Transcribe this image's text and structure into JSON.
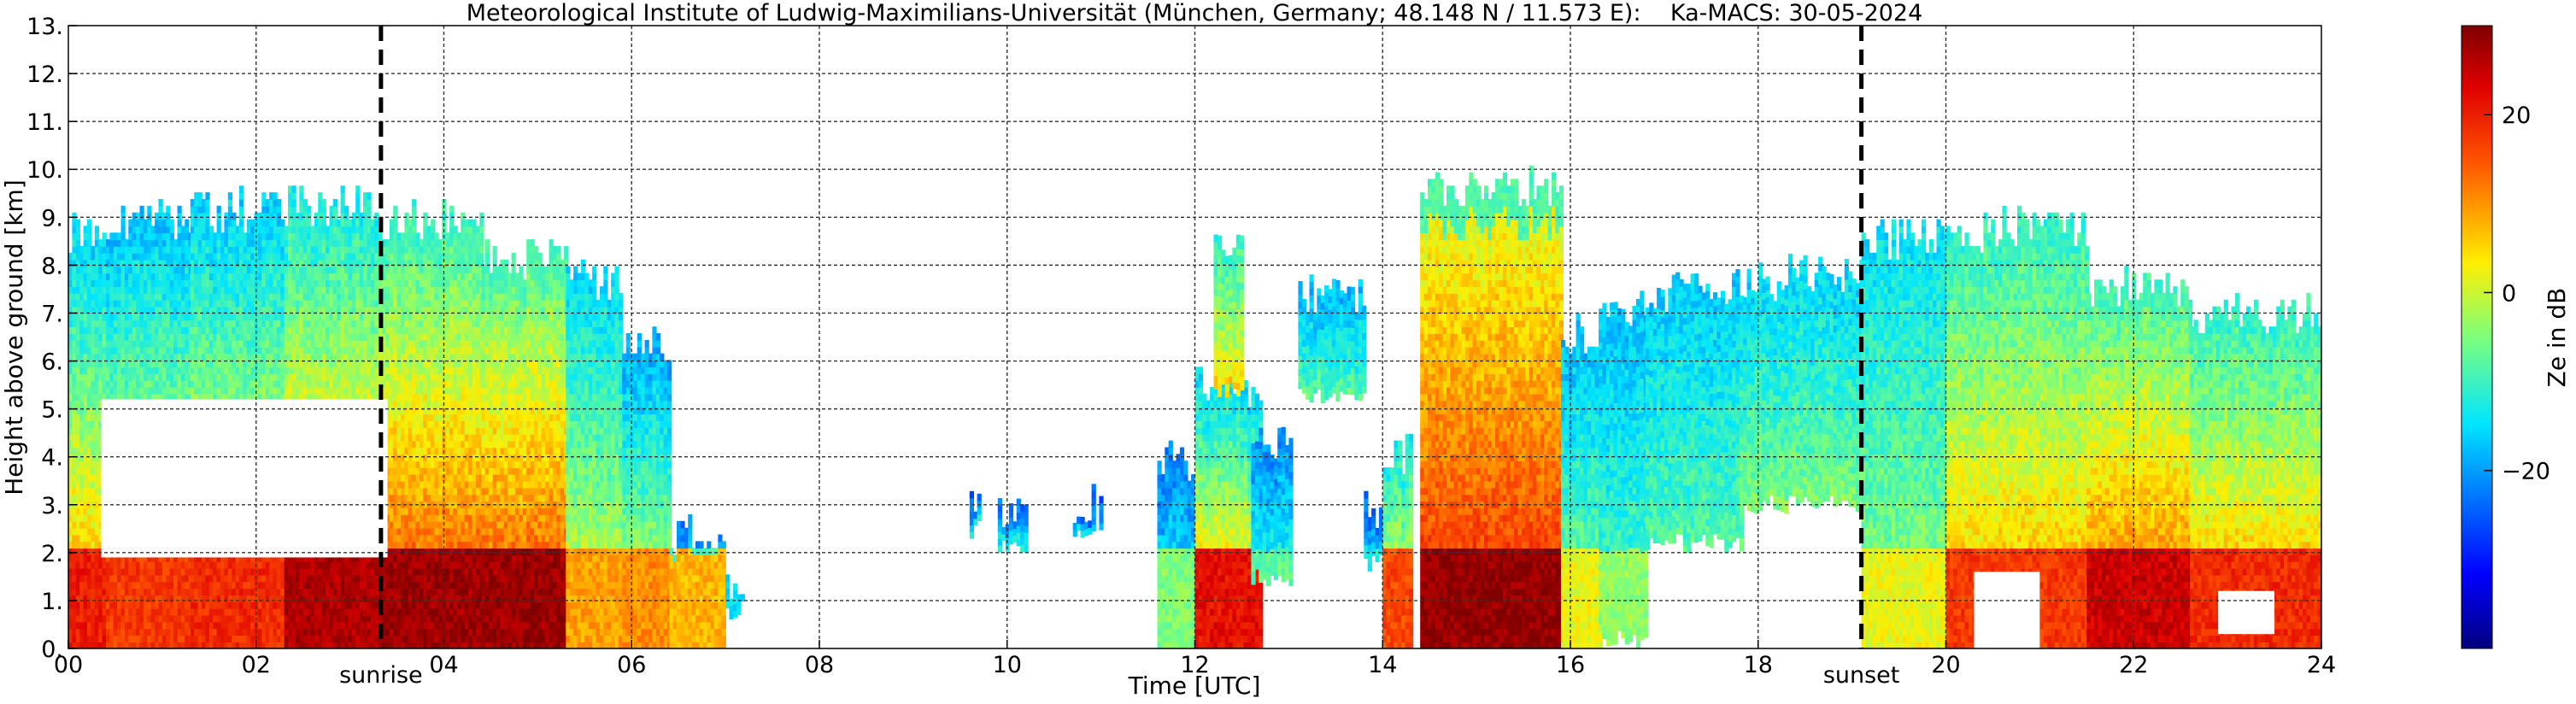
{
  "chart_data": {
    "type": "heatmap",
    "title": "Meteorological Institute of Ludwig-Maximilians-Universität (München, Germany; 48.148 N / 11.573 E):    Ka-MACS: 30-05-2024",
    "xlabel": "Time [UTC]",
    "ylabel": "Height above ground [km]",
    "xlim": [
      0,
      24
    ],
    "ylim": [
      0,
      13
    ],
    "x_ticks": [
      0,
      2,
      4,
      6,
      8,
      10,
      12,
      14,
      16,
      18,
      20,
      22,
      24
    ],
    "x_tick_labels": [
      "00",
      "02",
      "04",
      "06",
      "08",
      "10",
      "12",
      "14",
      "16",
      "18",
      "20",
      "22",
      "24"
    ],
    "y_ticks": [
      0,
      1,
      2,
      3,
      4,
      5,
      6,
      7,
      8,
      9,
      10,
      11,
      12,
      13
    ],
    "y_tick_labels": [
      "0.",
      "1.",
      "2.",
      "3.",
      "4.",
      "5.",
      "6.",
      "7.",
      "8.",
      "9.",
      "10.",
      "11.",
      "12.",
      "13."
    ],
    "grid": true,
    "markers": [
      {
        "label": "sunrise",
        "x": 3.33
      },
      {
        "label": "sunset",
        "x": 19.1
      }
    ],
    "colorbar": {
      "label": "Ze in dB",
      "min": -40,
      "max": 30,
      "ticks": [
        20,
        0,
        -20
      ],
      "tick_labels": [
        "20",
        "0",
        "−20"
      ],
      "colormap": "jet"
    },
    "echo_regions": [
      {
        "x": [
          0.0,
          3.3
        ],
        "height_km": [
          0,
          9.2
        ],
        "intensity": "mixed, strong below 2 km"
      },
      {
        "x": [
          3.3,
          5.4
        ],
        "height_km": [
          0,
          9.1
        ],
        "intensity": "strong below 5 km"
      },
      {
        "x": [
          5.4,
          7.0
        ],
        "height_km": [
          0,
          8.0
        ],
        "intensity": "moderate, decaying"
      },
      {
        "x": [
          9.6,
          11.0
        ],
        "height_km": [
          1.5,
          3.0
        ],
        "intensity": "weak, scattered"
      },
      {
        "x": [
          11.6,
          12.7
        ],
        "height_km": [
          0,
          8.3
        ],
        "intensity": "strong convective"
      },
      {
        "x": [
          12.7,
          13.8
        ],
        "height_km": [
          1.8,
          7.4
        ],
        "intensity": "weak to moderate"
      },
      {
        "x": [
          14.4,
          16.0
        ],
        "height_km": [
          0,
          9.5
        ],
        "intensity": "very strong convective"
      },
      {
        "x": [
          16.0,
          19.1
        ],
        "height_km": [
          1.0,
          7.7
        ],
        "intensity": "moderate stratiform aloft"
      },
      {
        "x": [
          19.1,
          24.0
        ],
        "height_km": [
          0,
          8.7
        ],
        "intensity": "strong below 4 km"
      }
    ]
  }
}
